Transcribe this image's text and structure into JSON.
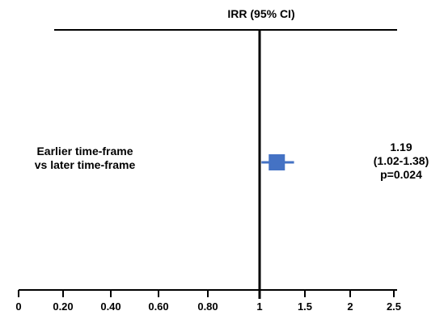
{
  "chart_data": {
    "type": "forest",
    "title": "IRR (95% CI)",
    "xlabel": "",
    "ylabel": "",
    "x_ticks": [
      0,
      0.2,
      0.4,
      0.6,
      0.8,
      1,
      1.5,
      2,
      2.5
    ],
    "x_tick_labels": [
      "0",
      "0.20",
      "0.40",
      "0.60",
      "0.80",
      "1",
      "1.5",
      "2",
      "2.5"
    ],
    "reference_line": 1,
    "grid": false,
    "rows": [
      {
        "label_lines": [
          "Earlier time-frame",
          "vs later time-frame"
        ],
        "estimate": 1.19,
        "ci_low": 1.02,
        "ci_high": 1.38,
        "estimate_text": "1.19",
        "ci_text": "(1.02-1.38)",
        "p_text": "p=0.024"
      }
    ],
    "colors": {
      "marker": "#4472C4",
      "axis": "#000000"
    }
  }
}
